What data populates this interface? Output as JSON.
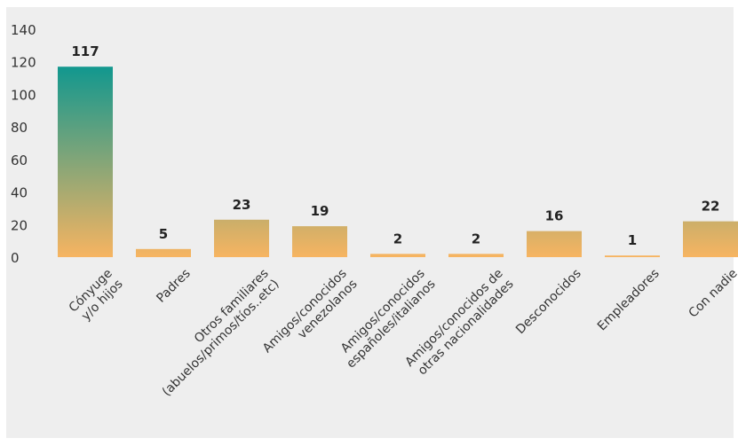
{
  "chart_data": {
    "type": "bar",
    "categories": [
      [
        "Cónyuge",
        "y/o hijos"
      ],
      [
        "Padres"
      ],
      [
        "Otros familiares",
        "(abuelos/primos/tíos..etc)"
      ],
      [
        "Amigos/conocidos",
        "venezolanos"
      ],
      [
        "Amigos/conocidos",
        "españoles/italianos"
      ],
      [
        "Amigos/conocidos de",
        "otras nacionalidades"
      ],
      [
        "Desconocidos"
      ],
      [
        "Empleadores"
      ],
      [
        "Con nadie"
      ]
    ],
    "values": [
      117,
      5,
      23,
      19,
      2,
      2,
      16,
      1,
      22
    ],
    "ylim": [
      0,
      140
    ],
    "yticks": [
      0,
      20,
      40,
      60,
      80,
      100,
      120,
      140
    ],
    "grid": false,
    "colors": {
      "bar_top": "#0f978f",
      "bar_bottom": "#f7b461",
      "background": "#eeeeee"
    }
  }
}
